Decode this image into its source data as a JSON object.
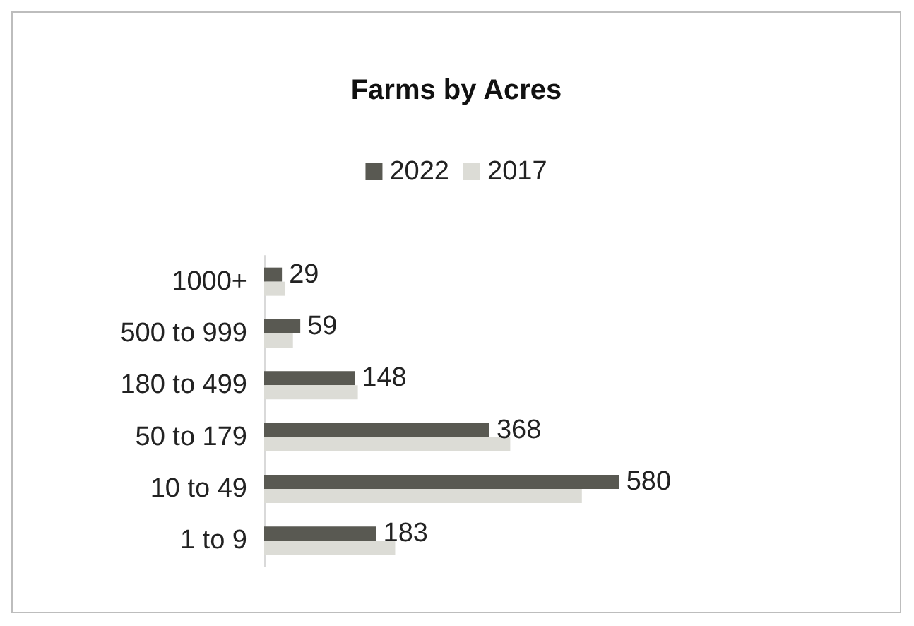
{
  "chart_data": {
    "type": "bar",
    "orientation": "horizontal",
    "title": "Farms by Acres",
    "categories": [
      "1000+",
      "500 to 999",
      "180 to 499",
      "50 to 179",
      "10 to 49",
      "1 to 9"
    ],
    "series": [
      {
        "name": "2022",
        "color": "#595952",
        "values": [
          29,
          59,
          148,
          368,
          580,
          183
        ],
        "value_labels": [
          "29",
          "59",
          "148",
          "368",
          "580",
          "183"
        ]
      },
      {
        "name": "2017",
        "color": "#dcdcd6",
        "values": [
          34,
          47,
          153,
          402,
          519,
          214
        ]
      }
    ],
    "legend": "top",
    "grid": false
  }
}
